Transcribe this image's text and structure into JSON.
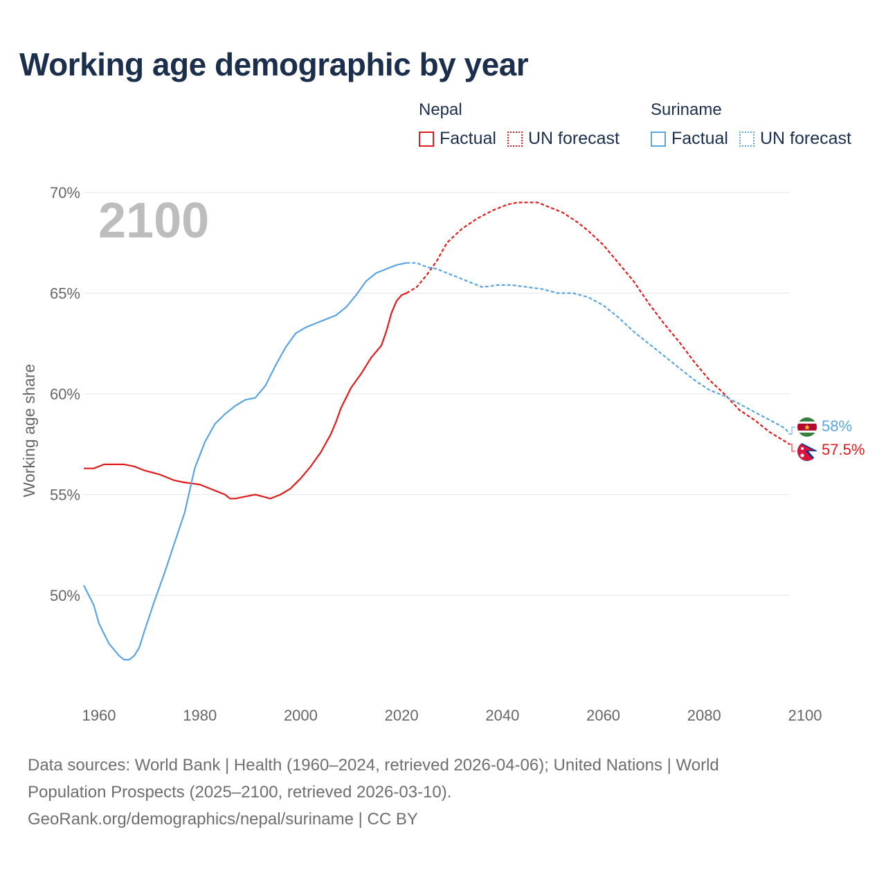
{
  "title": "Working age demographic by year",
  "legend": {
    "groups": [
      {
        "name": "Nepal",
        "factual": "Factual",
        "forecast": "UN forecast",
        "color": "#e31a1c"
      },
      {
        "name": "Suriname",
        "factual": "Factual",
        "forecast": "UN forecast",
        "color": "#5aa4e1"
      }
    ]
  },
  "year_label": "2100",
  "footer": {
    "line1": "Data sources: World Bank | Health (1960–2024, retrieved 2026-04-06); United Nations | World",
    "line2": "Population Prospects (2025–2100, retrieved 2026-03-10).",
    "line3": "GeoRank.org/demographics/nepal/suriname | CC BY"
  },
  "chart_data": {
    "type": "line",
    "title": "Working age demographic by year",
    "xlabel": "",
    "ylabel": "Working age share",
    "xlim": [
      1960,
      2100
    ],
    "ylim": [
      46,
      70
    ],
    "x_ticks": [
      1960,
      1980,
      2000,
      2020,
      2040,
      2060,
      2080,
      2100
    ],
    "x_tick_labels": [
      "1960",
      "1980",
      "2000",
      "2020",
      "2040",
      "2060",
      "2080",
      "2100"
    ],
    "y_ticks": [
      50,
      55,
      60,
      65,
      70
    ],
    "y_tick_labels": [
      "50%",
      "55%",
      "60%",
      "65%",
      "70%"
    ],
    "grid": true,
    "factual_end": 2024,
    "series": [
      {
        "name": "Nepal",
        "color": "#e31a1c",
        "end_label": "57.5%",
        "flag": "nepal-flag-icon",
        "points": [
          [
            1960,
            56.3
          ],
          [
            1962,
            56.3
          ],
          [
            1964,
            56.5
          ],
          [
            1966,
            56.5
          ],
          [
            1968,
            56.5
          ],
          [
            1970,
            56.4
          ],
          [
            1972,
            56.2
          ],
          [
            1975,
            56.0
          ],
          [
            1978,
            55.7
          ],
          [
            1980,
            55.6
          ],
          [
            1983,
            55.5
          ],
          [
            1986,
            55.2
          ],
          [
            1988,
            55.0
          ],
          [
            1989,
            54.8
          ],
          [
            1990,
            54.8
          ],
          [
            1992,
            54.9
          ],
          [
            1994,
            55.0
          ],
          [
            1997,
            54.8
          ],
          [
            1999,
            55.0
          ],
          [
            2001,
            55.3
          ],
          [
            2003,
            55.8
          ],
          [
            2005,
            56.4
          ],
          [
            2007,
            57.1
          ],
          [
            2009,
            58.0
          ],
          [
            2010,
            58.6
          ],
          [
            2011,
            59.3
          ],
          [
            2013,
            60.3
          ],
          [
            2015,
            61.0
          ],
          [
            2017,
            61.8
          ],
          [
            2019,
            62.4
          ],
          [
            2020,
            63.1
          ],
          [
            2021,
            64.0
          ],
          [
            2022,
            64.6
          ],
          [
            2023,
            64.9
          ],
          [
            2024,
            65.0
          ],
          [
            2026,
            65.3
          ],
          [
            2028,
            65.9
          ],
          [
            2030,
            66.6
          ],
          [
            2032,
            67.5
          ],
          [
            2035,
            68.2
          ],
          [
            2038,
            68.7
          ],
          [
            2041,
            69.1
          ],
          [
            2044,
            69.4
          ],
          [
            2046,
            69.5
          ],
          [
            2050,
            69.5
          ],
          [
            2052,
            69.3
          ],
          [
            2055,
            69.0
          ],
          [
            2058,
            68.5
          ],
          [
            2060,
            68.1
          ],
          [
            2063,
            67.4
          ],
          [
            2066,
            66.5
          ],
          [
            2069,
            65.6
          ],
          [
            2072,
            64.5
          ],
          [
            2075,
            63.5
          ],
          [
            2078,
            62.6
          ],
          [
            2081,
            61.6
          ],
          [
            2084,
            60.7
          ],
          [
            2087,
            60.0
          ],
          [
            2090,
            59.2
          ],
          [
            2093,
            58.7
          ],
          [
            2096,
            58.1
          ],
          [
            2098,
            57.8
          ],
          [
            2100,
            57.5
          ]
        ]
      },
      {
        "name": "Suriname",
        "color": "#5aa4e1",
        "end_label": "58%",
        "flag": "suriname-flag-icon",
        "points": [
          [
            1960,
            50.5
          ],
          [
            1961,
            50.0
          ],
          [
            1962,
            49.5
          ],
          [
            1963,
            48.6
          ],
          [
            1965,
            47.6
          ],
          [
            1967,
            47.0
          ],
          [
            1968,
            46.8
          ],
          [
            1969,
            46.8
          ],
          [
            1970,
            47.0
          ],
          [
            1971,
            47.4
          ],
          [
            1972,
            48.2
          ],
          [
            1974,
            49.7
          ],
          [
            1976,
            51.1
          ],
          [
            1978,
            52.6
          ],
          [
            1980,
            54.1
          ],
          [
            1982,
            56.3
          ],
          [
            1984,
            57.6
          ],
          [
            1986,
            58.5
          ],
          [
            1988,
            59.0
          ],
          [
            1990,
            59.4
          ],
          [
            1992,
            59.7
          ],
          [
            1994,
            59.8
          ],
          [
            1996,
            60.4
          ],
          [
            1998,
            61.4
          ],
          [
            2000,
            62.3
          ],
          [
            2002,
            63.0
          ],
          [
            2004,
            63.3
          ],
          [
            2006,
            63.5
          ],
          [
            2008,
            63.7
          ],
          [
            2010,
            63.9
          ],
          [
            2012,
            64.3
          ],
          [
            2014,
            64.9
          ],
          [
            2016,
            65.6
          ],
          [
            2018,
            66.0
          ],
          [
            2020,
            66.2
          ],
          [
            2022,
            66.4
          ],
          [
            2024,
            66.5
          ],
          [
            2026,
            66.5
          ],
          [
            2028,
            66.3
          ],
          [
            2030,
            66.2
          ],
          [
            2033,
            65.9
          ],
          [
            2036,
            65.6
          ],
          [
            2039,
            65.3
          ],
          [
            2042,
            65.4
          ],
          [
            2045,
            65.4
          ],
          [
            2048,
            65.3
          ],
          [
            2051,
            65.2
          ],
          [
            2054,
            65.0
          ],
          [
            2057,
            65.0
          ],
          [
            2060,
            64.8
          ],
          [
            2063,
            64.4
          ],
          [
            2066,
            63.8
          ],
          [
            2069,
            63.1
          ],
          [
            2072,
            62.5
          ],
          [
            2075,
            61.9
          ],
          [
            2078,
            61.3
          ],
          [
            2081,
            60.7
          ],
          [
            2084,
            60.2
          ],
          [
            2087,
            59.9
          ],
          [
            2090,
            59.5
          ],
          [
            2093,
            59.1
          ],
          [
            2096,
            58.7
          ],
          [
            2099,
            58.3
          ],
          [
            2100,
            58.0
          ]
        ]
      }
    ]
  }
}
